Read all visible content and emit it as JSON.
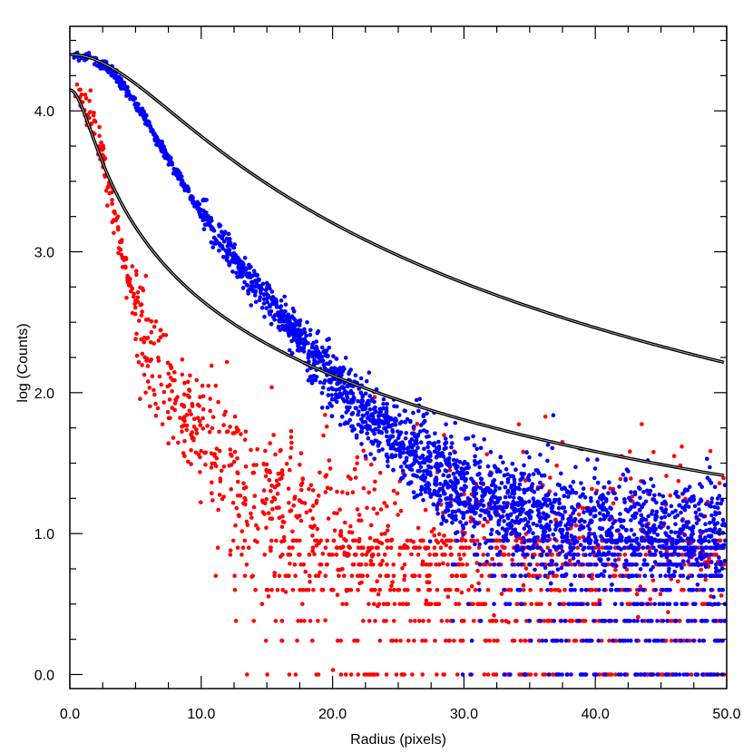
{
  "chart_data": {
    "type": "scatter",
    "xlabel": "Radius (pixels)",
    "ylabel": "log  (Counts)",
    "xlim": [
      0,
      50
    ],
    "ylim": [
      -0.1,
      4.6
    ],
    "x_ticks": [
      "0.0",
      "10.0",
      "20.0",
      "30.0",
      "40.0",
      "50.0"
    ],
    "y_ticks": [
      "0.0",
      "1.0",
      "2.0",
      "3.0",
      "4.0"
    ],
    "grid": false,
    "legend": "none",
    "series": [
      {
        "color": "#0000ff",
        "points": [
          [
            0.5,
            4.4
          ],
          [
            1.5,
            4.38
          ],
          [
            2.5,
            4.33
          ],
          [
            3.5,
            4.25
          ],
          [
            4.5,
            4.13
          ],
          [
            5.5,
            3.98
          ],
          [
            6.5,
            3.82
          ],
          [
            7.5,
            3.66
          ],
          [
            8.5,
            3.5
          ],
          [
            9.5,
            3.35
          ],
          [
            10.5,
            3.21
          ],
          [
            11.5,
            3.08
          ],
          [
            12.5,
            2.96
          ],
          [
            13.5,
            2.84
          ],
          [
            14.5,
            2.73
          ],
          [
            15.5,
            2.62
          ],
          [
            16.5,
            2.5
          ],
          [
            17.5,
            2.38
          ],
          [
            18.5,
            2.27
          ],
          [
            19.5,
            2.15
          ],
          [
            20.5,
            2.05
          ],
          [
            21.5,
            1.95
          ],
          [
            22.5,
            1.86
          ],
          [
            23.5,
            1.77
          ],
          [
            24.5,
            1.68
          ],
          [
            25.5,
            1.6
          ],
          [
            26.5,
            1.52
          ],
          [
            27.5,
            1.45
          ],
          [
            28.5,
            1.39
          ],
          [
            29.5,
            1.33
          ],
          [
            30.5,
            1.28
          ],
          [
            32,
            1.22
          ],
          [
            34,
            1.17
          ],
          [
            36,
            1.13
          ],
          [
            38,
            1.1
          ],
          [
            40,
            1.08
          ],
          [
            42,
            1.06
          ],
          [
            44,
            1.05
          ],
          [
            46,
            1.04
          ],
          [
            48,
            1.03
          ],
          [
            50,
            1.02
          ]
        ]
      },
      {
        "color": "#ff0000",
        "points": [
          [
            0.5,
            4.12
          ],
          [
            1.5,
            4.0
          ],
          [
            2.5,
            3.65
          ],
          [
            3.5,
            3.2
          ],
          [
            4.5,
            2.78
          ],
          [
            5.5,
            2.45
          ],
          [
            6.5,
            2.2
          ],
          [
            7.5,
            2.02
          ],
          [
            8.5,
            1.88
          ],
          [
            9.5,
            1.76
          ],
          [
            10.5,
            1.65
          ],
          [
            11.5,
            1.56
          ],
          [
            12.5,
            1.48
          ],
          [
            13.5,
            1.4
          ],
          [
            14.5,
            1.33
          ],
          [
            15.5,
            1.27
          ],
          [
            16.5,
            1.22
          ],
          [
            17.5,
            1.17
          ],
          [
            18.5,
            1.13
          ],
          [
            19.5,
            1.1
          ],
          [
            20.5,
            1.07
          ],
          [
            21.5,
            1.05
          ],
          [
            22.5,
            1.04
          ],
          [
            23.5,
            1.03
          ],
          [
            24.5,
            1.02
          ],
          [
            26,
            1.01
          ],
          [
            28,
            1.0
          ],
          [
            30,
            1.0
          ],
          [
            33,
            1.0
          ],
          [
            36,
            1.0
          ],
          [
            40,
            1.0
          ],
          [
            45,
            1.0
          ],
          [
            50,
            1.0
          ]
        ]
      }
    ],
    "quantized_levels": [
      0.0,
      0.24,
      0.38,
      0.5,
      0.6,
      0.7,
      0.78,
      0.85,
      0.9,
      0.95
    ],
    "outliers": [
      [
        34.5,
        1.58
      ],
      [
        35.8,
        1.56
      ],
      [
        36.2,
        1.83
      ],
      [
        36.8,
        1.84
      ],
      [
        37.5,
        1.65
      ],
      [
        39.0,
        1.6
      ],
      [
        42.0,
        1.55
      ],
      [
        44.0,
        1.52
      ],
      [
        46.0,
        1.55
      ],
      [
        48.5,
        1.53
      ]
    ],
    "fits": [
      {
        "a": 4.4,
        "r0": 7.6,
        "p": 1.33
      },
      {
        "a": 4.15,
        "r0": 1.5,
        "p": 0.9
      }
    ]
  }
}
